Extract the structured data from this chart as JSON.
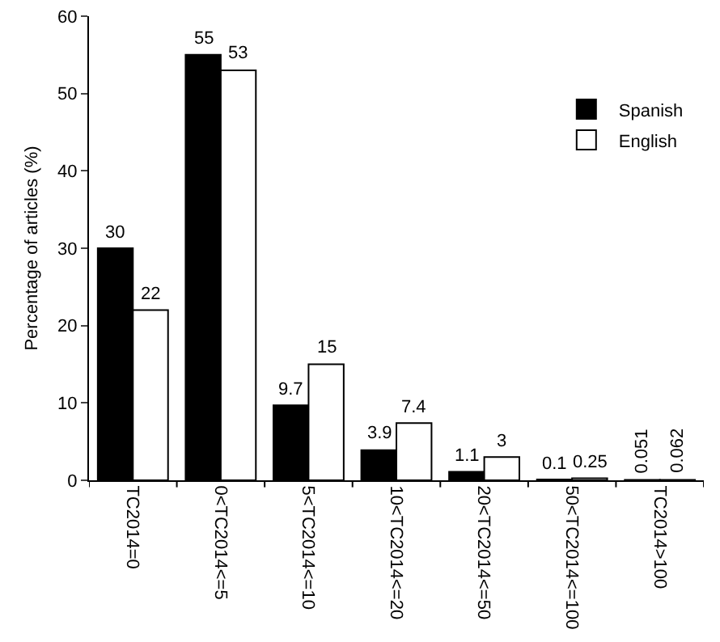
{
  "chart_data": {
    "type": "bar",
    "ylabel": "Percentage of articles (%)",
    "categories": [
      "TC2014=0",
      "0<TC2014<=5",
      "5<TC2014<=10",
      "10<TC2014<=20",
      "20<TC2014<=50",
      "50<TC2014<=100",
      "TC2014>100"
    ],
    "series": [
      {
        "name": "Spanish",
        "color": "#000000",
        "values": [
          30,
          55,
          9.7,
          3.9,
          1.1,
          0.1,
          0.051
        ]
      },
      {
        "name": "English",
        "color": "#ffffff",
        "values": [
          22,
          53,
          15,
          7.4,
          3,
          0.25,
          0.062
        ]
      }
    ],
    "ylim": [
      0,
      60
    ],
    "yticks": [
      0,
      10,
      20,
      30,
      40,
      50,
      60
    ],
    "grid": false,
    "legend": "top right",
    "data_labels": true
  }
}
